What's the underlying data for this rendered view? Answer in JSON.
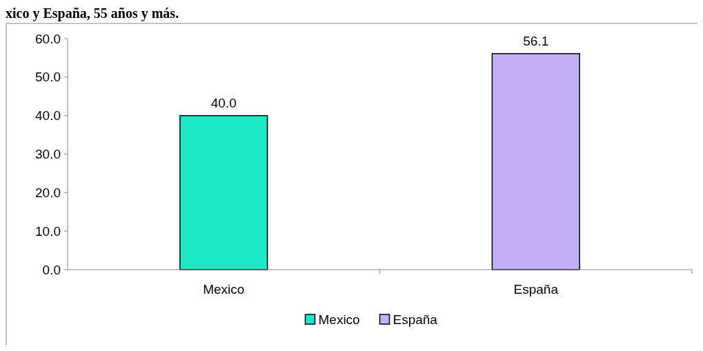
{
  "chart_data": {
    "type": "bar",
    "title": "xico y España, 55 años y más.",
    "categories": [
      "Mexico",
      "España"
    ],
    "series": [
      {
        "name": "Mexico",
        "color": "#1de9c4",
        "values": [
          40.0,
          null
        ],
        "value_labels": [
          "40.0",
          null
        ]
      },
      {
        "name": "España",
        "color": "#c4b0f7",
        "values": [
          null,
          56.1
        ],
        "value_labels": [
          null,
          "56.1"
        ]
      }
    ],
    "ylim": [
      0,
      60
    ],
    "yticks": [
      {
        "value": 0,
        "label": "0.0"
      },
      {
        "value": 10,
        "label": "10.0"
      },
      {
        "value": 20,
        "label": "20.0"
      },
      {
        "value": 30,
        "label": "30.0"
      },
      {
        "value": 40,
        "label": "40.0"
      },
      {
        "value": 50,
        "label": "50.0"
      },
      {
        "value": 60,
        "label": "60.0"
      }
    ],
    "legend": "bottom"
  }
}
